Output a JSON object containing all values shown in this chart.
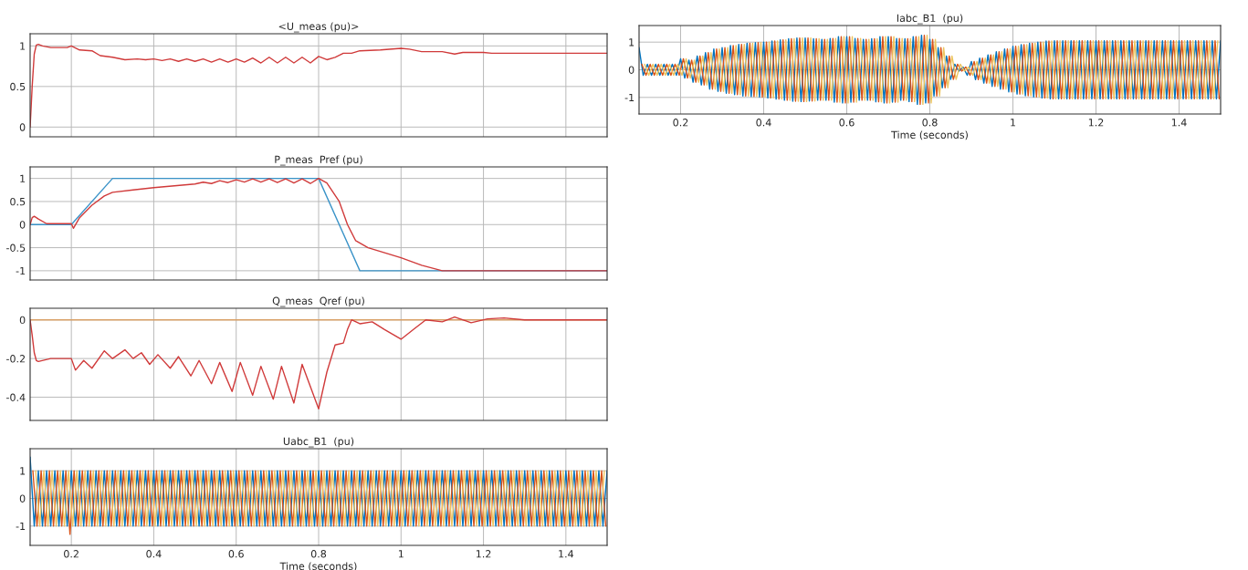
{
  "chart_data": [
    {
      "type": "line",
      "title": "<U_meas (pu)>",
      "xlim": [
        0.1,
        1.5
      ],
      "xticks": [
        0.2,
        0.4,
        0.6,
        0.8,
        1,
        1.2,
        1.4
      ],
      "ylim": [
        -0.12,
        1.15
      ],
      "yticks": [
        0,
        0.5,
        1
      ],
      "grid": true,
      "tick_labels": "y",
      "series": [
        {
          "color": "#d03a3a",
          "x": [
            0.1,
            0.105,
            0.11,
            0.115,
            0.12,
            0.13,
            0.15,
            0.19,
            0.2,
            0.22,
            0.25,
            0.27,
            0.3,
            0.33,
            0.36,
            0.38,
            0.4,
            0.42,
            0.44,
            0.46,
            0.48,
            0.5,
            0.52,
            0.54,
            0.56,
            0.58,
            0.6,
            0.62,
            0.64,
            0.66,
            0.68,
            0.7,
            0.72,
            0.74,
            0.76,
            0.78,
            0.8,
            0.82,
            0.84,
            0.86,
            0.88,
            0.9,
            0.95,
            1.0,
            1.02,
            1.05,
            1.1,
            1.13,
            1.15,
            1.2,
            1.22,
            1.5
          ],
          "values": [
            0,
            0.5,
            0.9,
            1.01,
            1.02,
            1.0,
            0.98,
            0.98,
            1.0,
            0.95,
            0.94,
            0.88,
            0.86,
            0.83,
            0.84,
            0.83,
            0.84,
            0.82,
            0.84,
            0.81,
            0.84,
            0.81,
            0.84,
            0.8,
            0.84,
            0.8,
            0.84,
            0.8,
            0.85,
            0.79,
            0.86,
            0.79,
            0.86,
            0.79,
            0.86,
            0.79,
            0.87,
            0.83,
            0.86,
            0.91,
            0.91,
            0.94,
            0.95,
            0.97,
            0.96,
            0.93,
            0.93,
            0.9,
            0.92,
            0.92,
            0.91,
            0.91
          ]
        }
      ]
    },
    {
      "type": "line",
      "title": "Iabc_B1  (pu)",
      "xlabel": "Time (seconds)",
      "xlim": [
        0.1,
        1.5
      ],
      "xticks": [
        0.2,
        0.4,
        0.6,
        0.8,
        1,
        1.2,
        1.4
      ],
      "ylim": [
        -1.6,
        1.6
      ],
      "yticks": [
        -1,
        0,
        1
      ],
      "grid": true,
      "series": [
        {
          "color": "#0072bd",
          "x": [
            0.1,
            0.11,
            0.12,
            0.13,
            0.14,
            0.15,
            0.16,
            0.17,
            0.18,
            0.19,
            0.2,
            0.21,
            0.22,
            0.23,
            0.24,
            0.25,
            0.26,
            0.27,
            0.28,
            0.29,
            0.3,
            0.31,
            0.32,
            0.33,
            0.34,
            0.35,
            0.36,
            0.37,
            0.38,
            0.39,
            0.4,
            0.41,
            0.42,
            0.43,
            0.44,
            0.45,
            0.46,
            0.47,
            0.48,
            0.49,
            0.5,
            0.51,
            0.52,
            0.53,
            0.54,
            0.55,
            0.56,
            0.57,
            0.58,
            0.59,
            0.6,
            0.61,
            0.62,
            0.63,
            0.64,
            0.65,
            0.66,
            0.67,
            0.68,
            0.69,
            0.7,
            0.71,
            0.72,
            0.73,
            0.74,
            0.75,
            0.76,
            0.77,
            0.78,
            0.79,
            0.8,
            0.81,
            0.82,
            0.83,
            0.84,
            0.85,
            0.86,
            0.87,
            0.88,
            0.89,
            0.9,
            0.91,
            0.92,
            0.93,
            0.94,
            0.95,
            0.96,
            0.97,
            0.98,
            0.99,
            1.0,
            1.01,
            1.02,
            1.03,
            1.04,
            1.05,
            1.06,
            1.07,
            1.08,
            1.09,
            1.1,
            1.11,
            1.12,
            1.13,
            1.14,
            1.15,
            1.16,
            1.17,
            1.18,
            1.19,
            1.2,
            1.21,
            1.22,
            1.23,
            1.24,
            1.25,
            1.26,
            1.27,
            1.28,
            1.29,
            1.3,
            1.31,
            1.32,
            1.33,
            1.34,
            1.35,
            1.36,
            1.37,
            1.38,
            1.39,
            1.4,
            1.41,
            1.42,
            1.43,
            1.44,
            1.45,
            1.46,
            1.47,
            1.48,
            1.49,
            1.5
          ],
          "values": [
            0.8,
            -0.2,
            0.2,
            -0.2,
            0.2,
            -0.2,
            0.2,
            -0.2,
            0.2,
            -0.2,
            0.4,
            -0.3,
            0.35,
            -0.45,
            0.5,
            -0.55,
            0.62,
            -0.7,
            0.75,
            -0.78,
            0.8,
            -0.85,
            0.88,
            -0.9,
            0.92,
            -0.95,
            0.96,
            -0.97,
            0.98,
            -0.99,
            1.0,
            -1.02,
            1.04,
            -1.06,
            1.08,
            -1.1,
            1.12,
            -1.14,
            1.15,
            -1.15,
            1.15,
            -1.13,
            1.12,
            -1.1,
            1.1,
            -1.1,
            1.13,
            -1.17,
            1.2,
            -1.2,
            1.2,
            -1.17,
            1.13,
            -1.1,
            1.1,
            -1.1,
            1.12,
            -1.16,
            1.2,
            -1.2,
            1.2,
            -1.17,
            1.13,
            -1.1,
            1.12,
            -1.15,
            1.2,
            -1.25,
            1.25,
            -1.2,
            1.1,
            -0.95,
            0.8,
            -0.65,
            0.5,
            -0.35,
            0.2,
            -0.05,
            0.1,
            -0.2,
            0.3,
            -0.36,
            0.42,
            -0.48,
            0.54,
            -0.6,
            0.65,
            -0.7,
            0.75,
            -0.8,
            0.85,
            -0.88,
            0.91,
            -0.94,
            0.96,
            -0.98,
            1.0,
            -1.02,
            1.04,
            -1.05,
            1.05,
            -1.05,
            1.05,
            -1.05,
            1.05,
            -1.05,
            1.05,
            -1.05,
            1.05,
            -1.05,
            1.05,
            -1.05,
            1.05,
            -1.05,
            1.05,
            -1.05,
            1.05,
            -1.05,
            1.05,
            -1.05,
            1.05,
            -1.05,
            1.05,
            -1.05,
            1.05,
            -1.05,
            1.05,
            -1.05,
            1.05,
            -1.05,
            1.05,
            -1.05,
            1.05,
            -1.05,
            1.05,
            -1.05,
            1.05,
            -1.05,
            1.05,
            -1.05,
            1.05
          ]
        },
        {
          "color": "#d95319",
          "x": [
            0.1067,
            0.1167,
            0.1267,
            0.1367,
            0.1467,
            0.1567,
            0.1667,
            0.1767,
            0.1867,
            0.1967,
            0.2067,
            0.2167,
            0.2267,
            0.2367,
            0.2467,
            0.2567,
            0.2667,
            0.2767,
            0.2867,
            0.2967,
            0.3067,
            0.3167,
            0.3267,
            0.3367,
            0.3467,
            0.3567,
            0.3667,
            0.3767,
            0.3867,
            0.3967,
            0.4067,
            0.4167,
            0.4267,
            0.4367,
            0.4467,
            0.4567,
            0.4667,
            0.4767,
            0.4867,
            0.4967,
            0.5067,
            0.5167,
            0.5267,
            0.5367,
            0.5467,
            0.5567,
            0.5667,
            0.5767,
            0.5867,
            0.5967,
            0.6067,
            0.6167,
            0.6267,
            0.6367,
            0.6467,
            0.6567,
            0.6667,
            0.6767,
            0.6867,
            0.6967,
            0.7067,
            0.7167,
            0.7267,
            0.7367,
            0.7467,
            0.7567,
            0.7667,
            0.7767,
            0.7867,
            0.7967,
            0.8067,
            0.8167,
            0.8267,
            0.8367,
            0.8467,
            0.8567,
            0.8667,
            0.8767,
            0.8867,
            0.8967,
            0.9067,
            0.9167,
            0.9267,
            0.9367,
            0.9467,
            0.9567,
            0.9667,
            0.9767,
            0.9867,
            0.9967,
            1.0067,
            1.0167,
            1.0267,
            1.0367,
            1.0467,
            1.0567,
            1.0667,
            1.0767,
            1.0867,
            1.0967,
            1.1067,
            1.1167,
            1.1267,
            1.1367,
            1.1467,
            1.1567,
            1.1667,
            1.1767,
            1.1867,
            1.1967,
            1.2067,
            1.2167,
            1.2267,
            1.2367,
            1.2467,
            1.2567,
            1.2667,
            1.2767,
            1.2867,
            1.2967,
            1.3067,
            1.3167,
            1.3267,
            1.3367,
            1.3467,
            1.3567,
            1.3667,
            1.3767,
            1.3867,
            1.3967,
            1.4067,
            1.4167,
            1.4267,
            1.4367,
            1.4467,
            1.4567,
            1.4667,
            1.4767,
            1.4867,
            1.4967
          ],
          "values": [
            0.2,
            -0.2,
            0.2,
            -0.2,
            0.2,
            -0.2,
            0.2,
            -0.2,
            0.2,
            -0.2,
            0.4,
            -0.3,
            0.35,
            -0.45,
            0.5,
            -0.55,
            0.62,
            -0.7,
            0.75,
            -0.78,
            0.8,
            -0.85,
            0.88,
            -0.9,
            0.92,
            -0.95,
            0.96,
            -0.97,
            0.98,
            -0.99,
            1.0,
            -1.02,
            1.04,
            -1.06,
            1.08,
            -1.1,
            1.12,
            -1.14,
            1.15,
            -1.15,
            1.15,
            -1.13,
            1.12,
            -1.1,
            1.1,
            -1.1,
            1.13,
            -1.17,
            1.2,
            -1.2,
            1.2,
            -1.17,
            1.13,
            -1.1,
            1.1,
            -1.1,
            1.12,
            -1.16,
            1.2,
            -1.2,
            1.2,
            -1.17,
            1.13,
            -1.1,
            1.12,
            -1.15,
            1.2,
            -1.25,
            1.25,
            -1.2,
            1.1,
            -0.95,
            0.8,
            -0.65,
            0.5,
            -0.35,
            0.2,
            -0.05,
            0.1,
            -0.2,
            0.3,
            -0.36,
            0.42,
            -0.48,
            0.54,
            -0.6,
            0.65,
            -0.7,
            0.75,
            -0.8,
            0.85,
            -0.88,
            0.91,
            -0.94,
            0.96,
            -0.98,
            1.0,
            -1.02,
            1.04,
            -1.05,
            1.05,
            -1.05,
            1.05,
            -1.05,
            1.05,
            -1.05,
            1.05,
            -1.05,
            1.05,
            -1.05,
            1.05,
            -1.05,
            1.05,
            -1.05,
            1.05,
            -1.05,
            1.05,
            -1.05,
            1.05,
            -1.05,
            1.05,
            -1.05,
            1.05,
            -1.05,
            1.05,
            -1.05,
            1.05,
            -1.05,
            1.05,
            -1.05,
            1.05,
            -1.05,
            1.05,
            -1.05,
            1.05,
            -1.05,
            1.05,
            -1.05,
            1.05,
            -1.05
          ]
        },
        {
          "color": "#edc560",
          "x": [
            0.1133,
            0.1233,
            0.1333,
            0.1433,
            0.1533,
            0.1633,
            0.1733,
            0.1833,
            0.1933,
            0.2033,
            0.2133,
            0.2233,
            0.2333,
            0.2433,
            0.2533,
            0.2633,
            0.2733,
            0.2833,
            0.2933,
            0.3033,
            0.3133,
            0.3233,
            0.3333,
            0.3433,
            0.3533,
            0.3633,
            0.3733,
            0.3833,
            0.3933,
            0.4033,
            0.4133,
            0.4233,
            0.4333,
            0.4433,
            0.4533,
            0.4633,
            0.4733,
            0.4833,
            0.4933,
            0.5033,
            0.5133,
            0.5233,
            0.5333,
            0.5433,
            0.5533,
            0.5633,
            0.5733,
            0.5833,
            0.5933,
            0.6033,
            0.6133,
            0.6233,
            0.6333,
            0.6433,
            0.6533,
            0.6633,
            0.6733,
            0.6833,
            0.6933,
            0.7033,
            0.7133,
            0.7233,
            0.7333,
            0.7433,
            0.7533,
            0.7633,
            0.7733,
            0.7833,
            0.7933,
            0.8033,
            0.8133,
            0.8233,
            0.8333,
            0.8433,
            0.8533,
            0.8633,
            0.8733,
            0.8833,
            0.8933,
            0.9033,
            0.9133,
            0.9233,
            0.9333,
            0.9433,
            0.9533,
            0.9633,
            0.9733,
            0.9833,
            0.9933,
            1.0033,
            1.0133,
            1.0233,
            1.0333,
            1.0433,
            1.0533,
            1.0633,
            1.0733,
            1.0833,
            1.0933,
            1.1033,
            1.1133,
            1.1233,
            1.1333,
            1.1433,
            1.1533,
            1.1633,
            1.1733,
            1.1833,
            1.1933,
            1.2033,
            1.2133,
            1.2233,
            1.2333,
            1.2433,
            1.2533,
            1.2633,
            1.2733,
            1.2833,
            1.2933,
            1.3033,
            1.3133,
            1.3233,
            1.3333,
            1.3433,
            1.3533,
            1.3633,
            1.3733,
            1.3833,
            1.3933,
            1.4033,
            1.4133,
            1.4233,
            1.4333,
            1.4433,
            1.4533,
            1.4633,
            1.4733,
            1.4833,
            1.4933
          ],
          "values": [
            0.2,
            -0.2,
            0.2,
            -0.2,
            0.2,
            -0.2,
            0.2,
            -0.2,
            0.2,
            -0.2,
            0.4,
            -0.3,
            0.35,
            -0.45,
            0.5,
            -0.55,
            0.62,
            -0.7,
            0.75,
            -0.78,
            0.8,
            -0.85,
            0.88,
            -0.9,
            0.92,
            -0.95,
            0.96,
            -0.97,
            0.98,
            -0.99,
            1.0,
            -1.02,
            1.04,
            -1.06,
            1.08,
            -1.1,
            1.12,
            -1.14,
            1.15,
            -1.15,
            1.15,
            -1.13,
            1.12,
            -1.1,
            1.1,
            -1.1,
            1.13,
            -1.17,
            1.2,
            -1.2,
            1.2,
            -1.17,
            1.13,
            -1.1,
            1.1,
            -1.1,
            1.12,
            -1.16,
            1.2,
            -1.2,
            1.2,
            -1.17,
            1.13,
            -1.1,
            1.12,
            -1.15,
            1.2,
            -1.25,
            1.25,
            -1.2,
            1.1,
            -0.95,
            0.8,
            -0.65,
            0.5,
            -0.35,
            0.2,
            -0.05,
            0.1,
            -0.2,
            0.3,
            -0.36,
            0.42,
            -0.48,
            0.54,
            -0.6,
            0.65,
            -0.7,
            0.75,
            -0.8,
            0.85,
            -0.88,
            0.91,
            -0.94,
            0.96,
            -0.98,
            1.0,
            -1.02,
            1.04,
            -1.05,
            1.05,
            -1.05,
            1.05,
            -1.05,
            1.05,
            -1.05,
            1.05,
            -1.05,
            1.05,
            -1.05,
            1.05,
            -1.05,
            1.05,
            -1.05,
            1.05,
            -1.05,
            1.05,
            -1.05,
            1.05,
            -1.05,
            1.05,
            -1.05,
            1.05,
            -1.05,
            1.05,
            -1.05,
            1.05,
            -1.05,
            1.05,
            -1.05,
            1.05,
            -1.05,
            1.05,
            -1.05,
            1.05,
            -1.05,
            1.05,
            -1.05,
            1.05
          ]
        }
      ]
    },
    {
      "type": "line",
      "title": "P_meas  Pref (pu)",
      "xlim": [
        0.1,
        1.5
      ],
      "xticks": [
        0.2,
        0.4,
        0.6,
        0.8,
        1,
        1.2,
        1.4
      ],
      "ylim": [
        -1.2,
        1.25
      ],
      "yticks": [
        -1,
        -0.5,
        0,
        0.5,
        1
      ],
      "grid": true,
      "tick_labels": "y",
      "series": [
        {
          "color": "#3a93c8",
          "x": [
            0.1,
            0.2,
            0.3,
            0.8,
            0.9,
            1.5
          ],
          "values": [
            0,
            0,
            1,
            1,
            -1,
            -1
          ]
        },
        {
          "color": "#d03a3a",
          "x": [
            0.1,
            0.105,
            0.11,
            0.12,
            0.14,
            0.2,
            0.205,
            0.22,
            0.25,
            0.28,
            0.3,
            0.35,
            0.4,
            0.45,
            0.5,
            0.52,
            0.54,
            0.56,
            0.58,
            0.6,
            0.62,
            0.64,
            0.66,
            0.68,
            0.7,
            0.72,
            0.74,
            0.76,
            0.78,
            0.8,
            0.82,
            0.85,
            0.87,
            0.89,
            0.92,
            1.0,
            1.05,
            1.1,
            1.5
          ],
          "values": [
            0,
            0.15,
            0.18,
            0.12,
            0.02,
            0.02,
            -0.08,
            0.15,
            0.42,
            0.62,
            0.7,
            0.75,
            0.8,
            0.84,
            0.88,
            0.92,
            0.89,
            0.95,
            0.91,
            0.97,
            0.92,
            0.99,
            0.92,
            0.99,
            0.91,
            0.99,
            0.9,
            0.99,
            0.89,
            1.0,
            0.9,
            0.5,
            0.0,
            -0.35,
            -0.5,
            -0.72,
            -0.88,
            -1.0,
            -1.0
          ]
        }
      ]
    },
    {
      "type": "line",
      "title": "Q_meas  Qref (pu)",
      "xlim": [
        0.1,
        1.5
      ],
      "xticks": [
        0.2,
        0.4,
        0.6,
        0.8,
        1,
        1.2,
        1.4
      ],
      "ylim": [
        -0.52,
        0.06
      ],
      "yticks": [
        -0.4,
        -0.2,
        0
      ],
      "grid": true,
      "tick_labels": "y",
      "series": [
        {
          "color": "#d9a066",
          "x": [
            0.1,
            1.5
          ],
          "values": [
            0,
            0
          ]
        },
        {
          "color": "#d03a3a",
          "x": [
            0.1,
            0.105,
            0.11,
            0.115,
            0.12,
            0.15,
            0.2,
            0.21,
            0.23,
            0.25,
            0.28,
            0.3,
            0.33,
            0.35,
            0.37,
            0.39,
            0.41,
            0.44,
            0.46,
            0.49,
            0.51,
            0.54,
            0.56,
            0.59,
            0.61,
            0.64,
            0.66,
            0.69,
            0.71,
            0.74,
            0.76,
            0.8,
            0.82,
            0.84,
            0.86,
            0.87,
            0.88,
            0.9,
            0.93,
            0.96,
            1.0,
            1.03,
            1.06,
            1.1,
            1.13,
            1.17,
            1.21,
            1.25,
            1.3,
            1.5
          ],
          "values": [
            0,
            -0.08,
            -0.17,
            -0.21,
            -0.215,
            -0.2,
            -0.2,
            -0.26,
            -0.21,
            -0.25,
            -0.16,
            -0.2,
            -0.155,
            -0.2,
            -0.17,
            -0.23,
            -0.18,
            -0.25,
            -0.19,
            -0.29,
            -0.21,
            -0.33,
            -0.22,
            -0.37,
            -0.22,
            -0.39,
            -0.24,
            -0.41,
            -0.24,
            -0.43,
            -0.23,
            -0.46,
            -0.27,
            -0.13,
            -0.12,
            -0.05,
            0.0,
            -0.02,
            -0.01,
            -0.05,
            -0.1,
            -0.05,
            0.0,
            -0.01,
            0.015,
            -0.015,
            0.005,
            0.01,
            0.0,
            0.0
          ]
        }
      ]
    },
    {
      "type": "line",
      "title": "Uabc_B1  (pu)",
      "xlabel": "Time (seconds)",
      "xlim": [
        0.1,
        1.5
      ],
      "xticks": [
        0.2,
        0.4,
        0.6,
        0.8,
        1,
        1.2,
        1.4
      ],
      "ylim": [
        -1.7,
        1.8
      ],
      "yticks": [
        -1,
        0,
        1
      ],
      "grid": true,
      "series": [
        {
          "color": "#0072bd",
          "x": [
            0.1,
            0.11,
            0.12,
            0.13,
            0.14,
            0.15,
            0.16,
            0.17,
            0.18,
            0.19,
            0.2,
            0.21,
            0.22,
            0.23,
            0.24,
            0.25,
            0.26,
            0.27,
            0.28,
            0.29,
            0.3,
            0.31,
            0.32,
            0.33,
            0.34,
            0.35,
            0.36,
            0.37,
            0.38,
            0.39,
            0.4,
            0.41,
            0.42,
            0.43,
            0.44,
            0.45,
            0.46,
            0.47,
            0.48,
            0.49,
            0.5,
            0.51,
            0.52,
            0.53,
            0.54,
            0.55,
            0.56,
            0.57,
            0.58,
            0.59,
            0.6,
            0.61,
            0.62,
            0.63,
            0.64,
            0.65,
            0.66,
            0.67,
            0.68,
            0.69,
            0.7,
            0.71,
            0.72,
            0.73,
            0.74,
            0.75,
            0.76,
            0.77,
            0.78,
            0.79,
            0.8,
            0.81,
            0.82,
            0.83,
            0.84,
            0.85,
            0.86,
            0.87,
            0.88,
            0.89,
            0.9,
            0.91,
            0.92,
            0.93,
            0.94,
            0.95,
            0.96,
            0.97,
            0.98,
            0.99,
            1.0,
            1.01,
            1.02,
            1.03,
            1.04,
            1.05,
            1.06,
            1.07,
            1.08,
            1.09,
            1.1,
            1.11,
            1.12,
            1.13,
            1.14,
            1.15,
            1.16,
            1.17,
            1.18,
            1.19,
            1.2,
            1.21,
            1.22,
            1.23,
            1.24,
            1.25,
            1.26,
            1.27,
            1.28,
            1.29,
            1.3,
            1.31,
            1.32,
            1.33,
            1.34,
            1.35,
            1.36,
            1.37,
            1.38,
            1.39,
            1.4,
            1.41,
            1.42,
            1.43,
            1.44,
            1.45,
            1.46,
            1.47,
            1.48,
            1.49,
            1.5
          ],
          "values": [
            1.5,
            -1,
            1,
            -1,
            1,
            -1,
            1,
            -1,
            1,
            -1,
            1,
            -1,
            1,
            -1,
            1,
            -1,
            1,
            -1,
            1,
            -1,
            1,
            -1,
            1,
            -1,
            1,
            -1,
            1,
            -1,
            1,
            -1,
            1,
            -1,
            1,
            -1,
            1,
            -1,
            1,
            -1,
            1,
            -1,
            1,
            -1,
            1,
            -1,
            1,
            -1,
            1,
            -1,
            1,
            -1,
            1,
            -1,
            1,
            -1,
            1,
            -1,
            1,
            -1,
            1,
            -1,
            1,
            -1,
            1,
            -1,
            1,
            -1,
            1,
            -1,
            1,
            -1,
            1,
            -1,
            1,
            -1,
            1,
            -1,
            1,
            -1,
            1,
            -1,
            1,
            -1,
            1,
            -1,
            1,
            -1,
            1,
            -1,
            1,
            -1,
            1,
            -1,
            1,
            -1,
            1,
            -1,
            1,
            -1,
            1,
            -1,
            1,
            -1,
            1,
            -1,
            1,
            -1,
            1,
            -1,
            1,
            -1,
            1,
            -1,
            1,
            -1,
            1,
            -1,
            1,
            -1,
            1,
            -1,
            1,
            -1,
            1,
            -1,
            1,
            -1,
            1,
            -1,
            1,
            -1,
            1,
            -1,
            1,
            -1,
            1,
            -1,
            1,
            -1,
            1,
            -1,
            1
          ]
        },
        {
          "color": "#d95319",
          "x": [
            0.1067,
            0.1167,
            0.1267,
            0.1367,
            0.1467,
            0.1567,
            0.1667,
            0.1767,
            0.1867,
            0.1967,
            0.2067,
            0.2167,
            0.2267,
            0.2367,
            0.2467,
            0.2567,
            0.2667,
            0.2767,
            0.2867,
            0.2967,
            0.3067,
            0.3167,
            0.3267,
            0.3367,
            0.3467,
            0.3567,
            0.3667,
            0.3767,
            0.3867,
            0.3967,
            0.4067,
            0.4167,
            0.4267,
            0.4367,
            0.4467,
            0.4567,
            0.4667,
            0.4767,
            0.4867,
            0.4967,
            0.5067,
            0.5167,
            0.5267,
            0.5367,
            0.5467,
            0.5567,
            0.5667,
            0.5767,
            0.5867,
            0.5967,
            0.6067,
            0.6167,
            0.6267,
            0.6367,
            0.6467,
            0.6567,
            0.6667,
            0.6767,
            0.6867,
            0.6967,
            0.7067,
            0.7167,
            0.7267,
            0.7367,
            0.7467,
            0.7567,
            0.7667,
            0.7767,
            0.7867,
            0.7967,
            0.8067,
            0.8167,
            0.8267,
            0.8367,
            0.8467,
            0.8567,
            0.8667,
            0.8767,
            0.8867,
            0.8967,
            0.9067,
            0.9167,
            0.9267,
            0.9367,
            0.9467,
            0.9567,
            0.9667,
            0.9767,
            0.9867,
            0.9967,
            1.0067,
            1.0167,
            1.0267,
            1.0367,
            1.0467,
            1.0567,
            1.0667,
            1.0767,
            1.0867,
            1.0967,
            1.1067,
            1.1167,
            1.1267,
            1.1367,
            1.1467,
            1.1567,
            1.1667,
            1.1767,
            1.1867,
            1.1967,
            1.2067,
            1.2167,
            1.2267,
            1.2367,
            1.2467,
            1.2567,
            1.2667,
            1.2767,
            1.2867,
            1.2967,
            1.3067,
            1.3167,
            1.3267,
            1.3367,
            1.3467,
            1.3567,
            1.3667,
            1.3767,
            1.3867,
            1.3967,
            1.4067,
            1.4167,
            1.4267,
            1.4367,
            1.4467,
            1.4567,
            1.4667,
            1.4767,
            1.4867,
            1.4967
          ],
          "values": [
            1,
            -1,
            1,
            -1,
            1,
            -1,
            1,
            -1,
            1,
            -1.3,
            1,
            -1,
            1,
            -1,
            1,
            -1,
            1,
            -1,
            1,
            -1,
            1,
            -1,
            1,
            -1,
            1,
            -1,
            1,
            -1,
            1,
            -1,
            1,
            -1,
            1,
            -1,
            1,
            -1,
            1,
            -1,
            1,
            -1,
            1,
            -1,
            1,
            -1,
            1,
            -1,
            1,
            -1,
            1,
            -1,
            1,
            -1,
            1,
            -1,
            1,
            -1,
            1,
            -1,
            1,
            -1,
            1,
            -1,
            1,
            -1,
            1,
            -1,
            1,
            -1,
            1,
            -1,
            1,
            -1,
            1,
            -1,
            1,
            -1,
            1,
            -1,
            1,
            -1,
            1,
            -1,
            1,
            -1,
            1,
            -1,
            1,
            -1,
            1,
            -1,
            1,
            -1,
            1,
            -1,
            1,
            -1,
            1,
            -1,
            1,
            -1,
            1,
            -1,
            1,
            -1,
            1,
            -1,
            1,
            -1,
            1,
            -1,
            1,
            -1,
            1,
            -1,
            1,
            -1,
            1,
            -1,
            1,
            -1,
            1,
            -1,
            1,
            -1,
            1,
            -1,
            1,
            -1,
            1,
            -1,
            1,
            -1,
            1,
            -1,
            1,
            -1,
            1,
            -1,
            1,
            -1
          ]
        },
        {
          "color": "#edc560",
          "x": [
            0.1133,
            0.1233,
            0.1333,
            0.1433,
            0.1533,
            0.1633,
            0.1733,
            0.1833,
            0.1933,
            0.2033,
            0.2133,
            0.2233,
            0.2333,
            0.2433,
            0.2533,
            0.2633,
            0.2733,
            0.2833,
            0.2933,
            0.3033,
            0.3133,
            0.3233,
            0.3333,
            0.3433,
            0.3533,
            0.3633,
            0.3733,
            0.3833,
            0.3933,
            0.4033,
            0.4133,
            0.4233,
            0.4333,
            0.4433,
            0.4533,
            0.4633,
            0.4733,
            0.4833,
            0.4933,
            0.5033,
            0.5133,
            0.5233,
            0.5333,
            0.5433,
            0.5533,
            0.5633,
            0.5733,
            0.5833,
            0.5933,
            0.6033,
            0.6133,
            0.6233,
            0.6333,
            0.6433,
            0.6533,
            0.6633,
            0.6733,
            0.6833,
            0.6933,
            0.7033,
            0.7133,
            0.7233,
            0.7333,
            0.7433,
            0.7533,
            0.7633,
            0.7733,
            0.7833,
            0.7933,
            0.8033,
            0.8133,
            0.8233,
            0.8333,
            0.8433,
            0.8533,
            0.8633,
            0.8733,
            0.8833,
            0.8933,
            0.9033,
            0.9133,
            0.9233,
            0.9333,
            0.9433,
            0.9533,
            0.9633,
            0.9733,
            0.9833,
            0.9933,
            1.0033,
            1.0133,
            1.0233,
            1.0333,
            1.0433,
            1.0533,
            1.0633,
            1.0733,
            1.0833,
            1.0933,
            1.1033,
            1.1133,
            1.1233,
            1.1333,
            1.1433,
            1.1533,
            1.1633,
            1.1733,
            1.1833,
            1.1933,
            1.2033,
            1.2133,
            1.2233,
            1.2333,
            1.2433,
            1.2533,
            1.2633,
            1.2733,
            1.2833,
            1.2933,
            1.3033,
            1.3133,
            1.3233,
            1.3333,
            1.3433,
            1.3533,
            1.3633,
            1.3733,
            1.3833,
            1.3933,
            1.4033,
            1.4133,
            1.4233,
            1.4333,
            1.4433,
            1.4533,
            1.4633,
            1.4733,
            1.4833,
            1.4933
          ],
          "values": [
            1,
            -1,
            1,
            -1,
            1,
            -1,
            1,
            -1,
            1,
            -1,
            1,
            -1,
            1,
            -1,
            1,
            -1,
            1,
            -1,
            1,
            -1,
            1,
            -1,
            1,
            -1,
            1,
            -1,
            1,
            -1,
            1,
            -1,
            1,
            -1,
            1,
            -1,
            1,
            -1,
            1,
            -1,
            1,
            -1,
            1,
            -1,
            1,
            -1,
            1,
            -1,
            1,
            -1,
            1,
            -1,
            1,
            -1,
            1,
            -1,
            1,
            -1,
            1,
            -1,
            1,
            -1,
            1,
            -1,
            1,
            -1,
            1,
            -1,
            1,
            -1,
            1,
            -1,
            1,
            -1,
            1,
            -1,
            1,
            -1,
            1,
            -1,
            1,
            -1,
            1,
            -1,
            1,
            -1,
            1,
            -1,
            1,
            -1,
            1,
            -1,
            1,
            -1,
            1,
            -1,
            1,
            -1,
            1,
            -1,
            1,
            -1,
            1,
            -1,
            1,
            -1,
            1,
            -1,
            1,
            -1,
            1,
            -1,
            1,
            -1,
            1,
            -1,
            1,
            -1,
            1,
            -1,
            1,
            -1,
            1,
            -1,
            1,
            -1,
            1,
            -1,
            1,
            -1,
            1,
            -1,
            1,
            -1,
            1,
            -1,
            1,
            -1,
            1,
            -1,
            1
          ]
        }
      ]
    }
  ]
}
